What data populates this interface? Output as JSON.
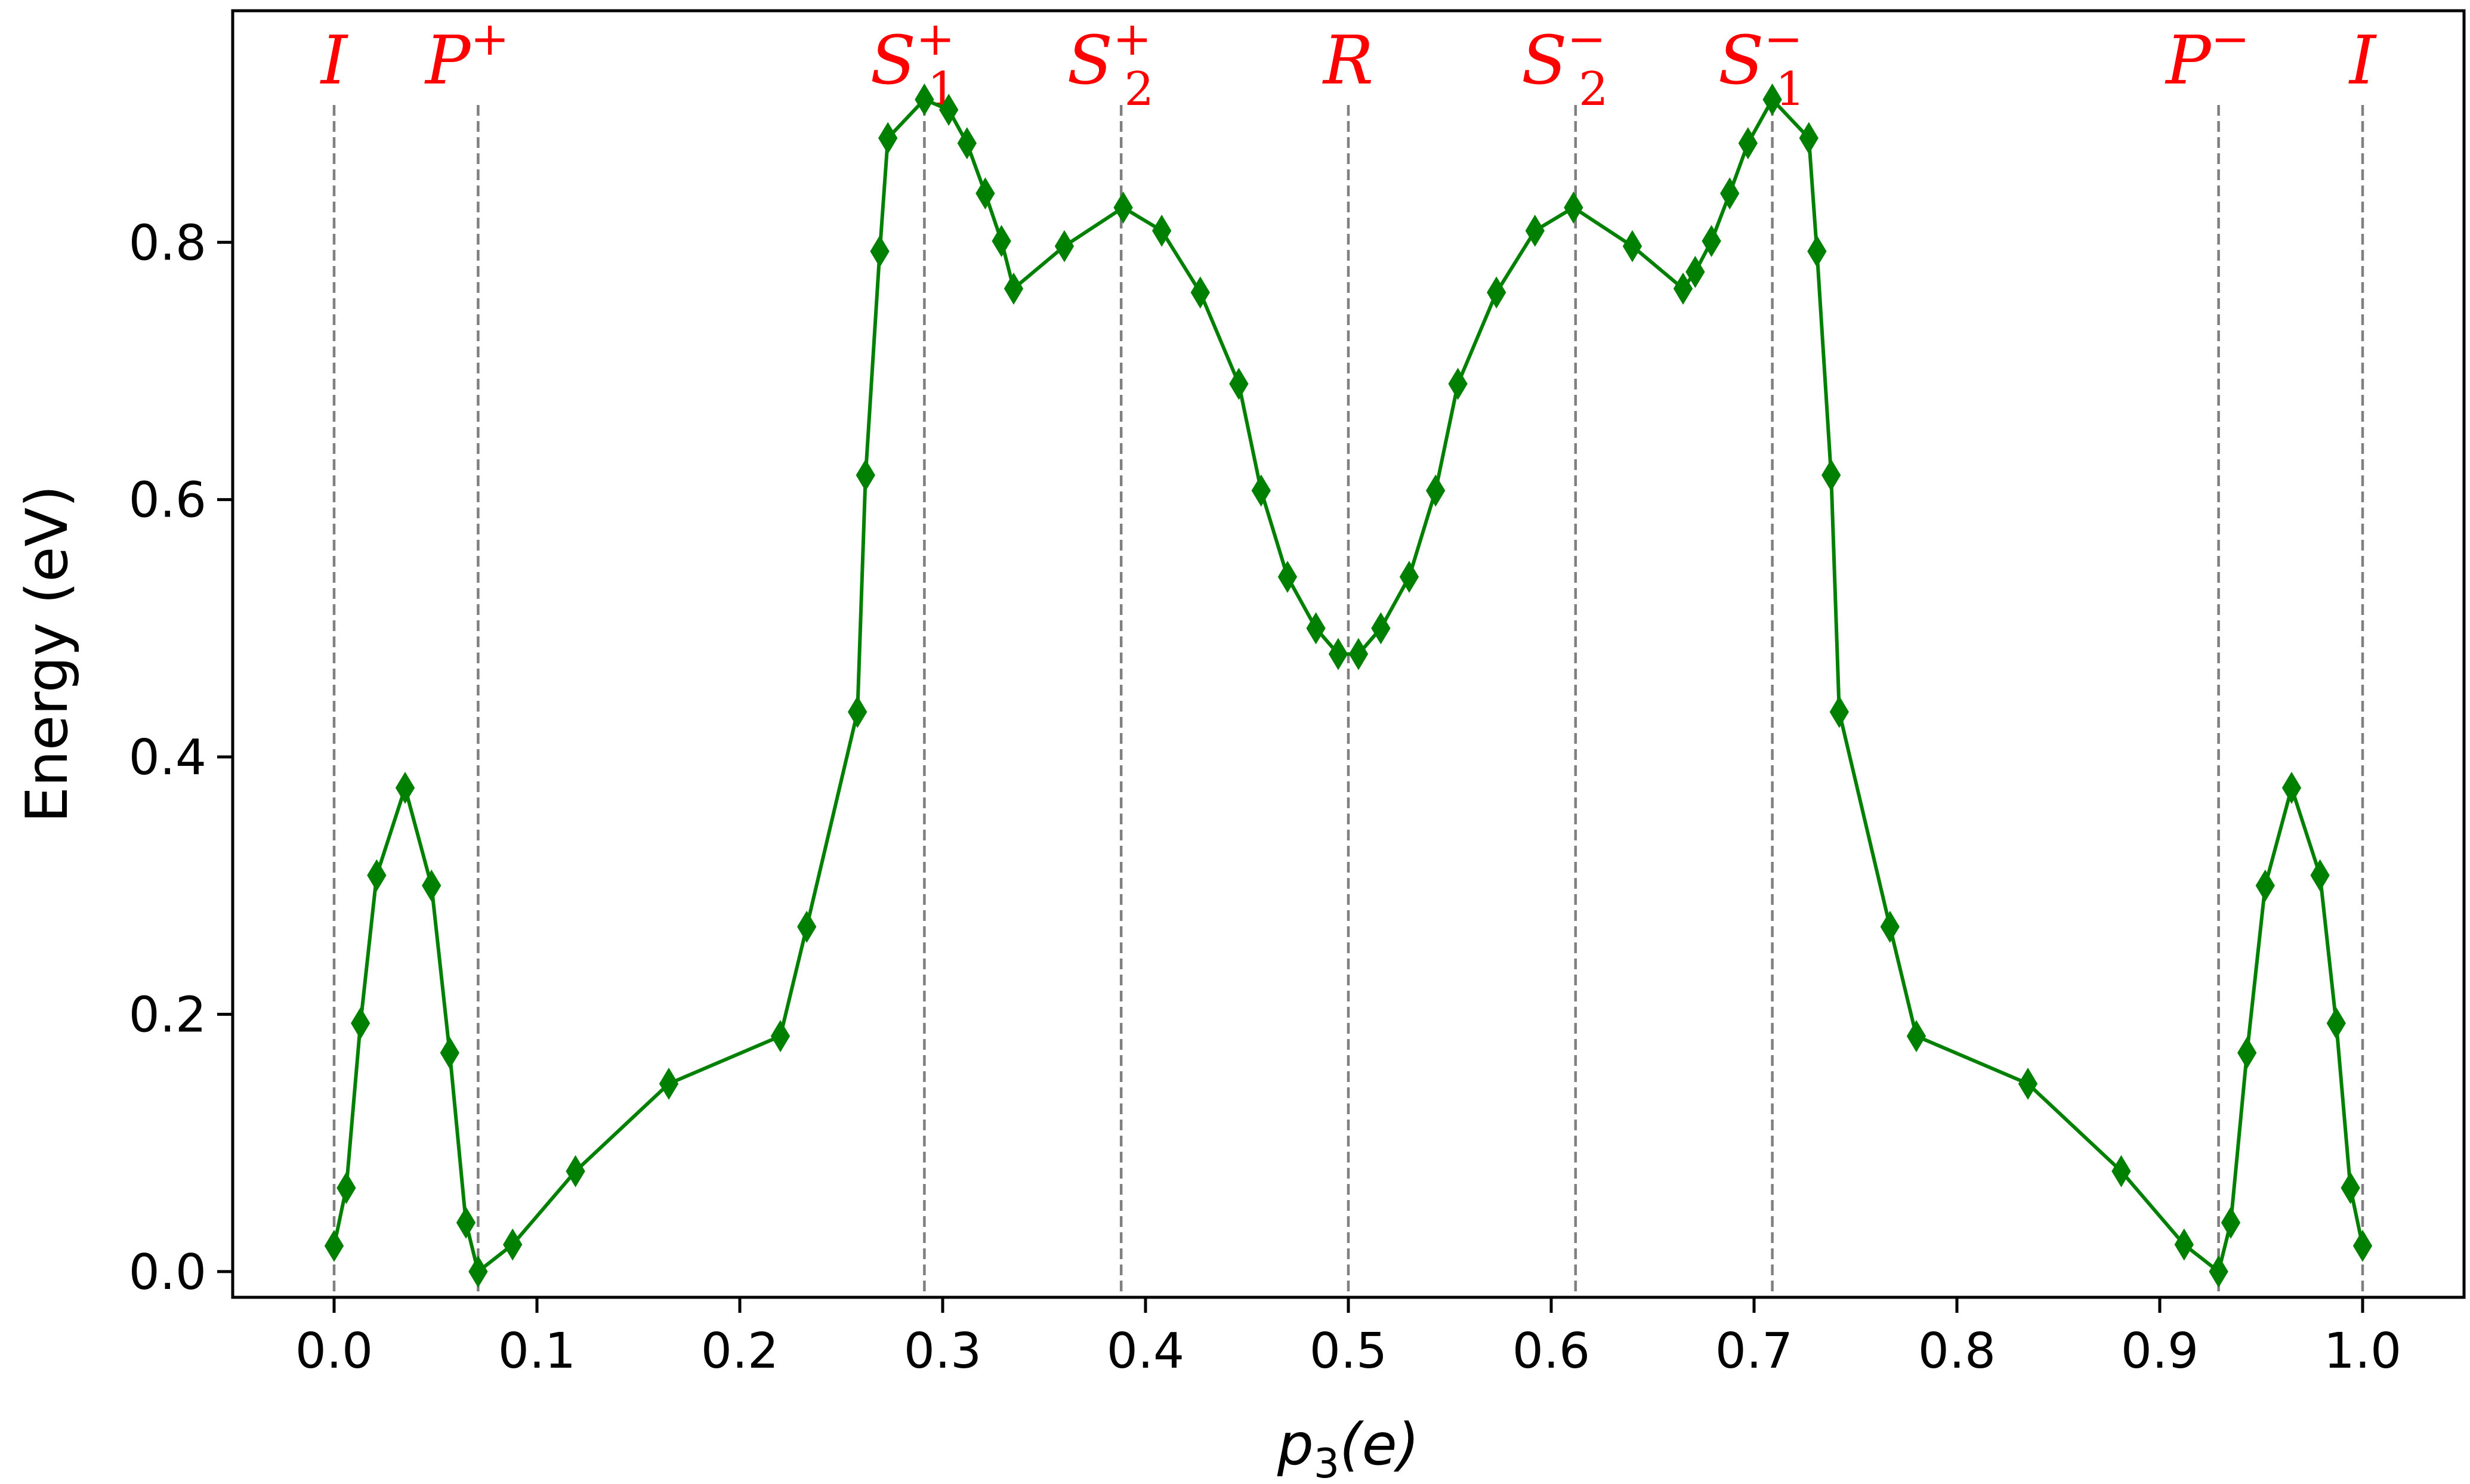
{
  "chart_data": {
    "type": "line",
    "xlabel_base": "p",
    "xlabel_sub": "3",
    "xlabel_rest": "(e)",
    "ylabel": "Energy (eV)",
    "xlim": [
      -0.05,
      1.05
    ],
    "ylim": [
      -0.02,
      0.98
    ],
    "grid": false,
    "x_ticks": [
      "0.0",
      "0.1",
      "0.2",
      "0.3",
      "0.4",
      "0.5",
      "0.6",
      "0.7",
      "0.8",
      "0.9",
      "1.0"
    ],
    "y_ticks": [
      "0.0",
      "0.2",
      "0.4",
      "0.6",
      "0.8"
    ],
    "series": [
      {
        "color": "#008000",
        "marker": "diamond",
        "x": [
          0.0,
          0.006,
          0.013,
          0.021,
          0.035,
          0.048,
          0.057,
          0.065,
          0.071,
          0.088,
          0.119,
          0.165,
          0.22,
          0.233,
          0.258,
          0.262,
          0.269,
          0.273,
          0.291,
          0.303,
          0.312,
          0.321,
          0.329,
          0.335,
          0.36,
          0.389,
          0.408,
          0.427,
          0.446,
          0.457,
          0.47,
          0.484,
          0.495,
          0.505,
          0.516,
          0.53,
          0.543,
          0.554,
          0.573,
          0.592,
          0.611,
          0.64,
          0.665,
          0.671,
          0.679,
          0.688,
          0.697,
          0.709,
          0.727,
          0.731,
          0.738,
          0.742,
          0.767,
          0.78,
          0.835,
          0.881,
          0.912,
          0.929,
          0.935,
          0.943,
          0.952,
          0.965,
          0.979,
          0.987,
          0.994,
          1.0
        ],
        "y": [
          0.02,
          0.065,
          0.193,
          0.308,
          0.376,
          0.3,
          0.17,
          0.038,
          0.0,
          0.021,
          0.078,
          0.146,
          0.183,
          0.268,
          0.435,
          0.619,
          0.793,
          0.881,
          0.911,
          0.903,
          0.877,
          0.838,
          0.801,
          0.764,
          0.797,
          0.827,
          0.809,
          0.761,
          0.69,
          0.607,
          0.54,
          0.5,
          0.48,
          0.48,
          0.5,
          0.54,
          0.607,
          0.69,
          0.761,
          0.809,
          0.827,
          0.797,
          0.764,
          0.777,
          0.801,
          0.838,
          0.877,
          0.911,
          0.881,
          0.793,
          0.619,
          0.435,
          0.268,
          0.183,
          0.146,
          0.078,
          0.021,
          0.0,
          0.038,
          0.17,
          0.3,
          0.376,
          0.308,
          0.193,
          0.065,
          0.02
        ]
      }
    ],
    "reference_lines": [
      {
        "x": 0.0,
        "label_base": "I",
        "label_sup": "",
        "label_sub": ""
      },
      {
        "x": 0.071,
        "label_base": "P",
        "label_sup": "+",
        "label_sub": ""
      },
      {
        "x": 0.291,
        "label_base": "S",
        "label_sup": "+",
        "label_sub": "1"
      },
      {
        "x": 0.388,
        "label_base": "S",
        "label_sup": "+",
        "label_sub": "2"
      },
      {
        "x": 0.5,
        "label_base": "R",
        "label_sup": "",
        "label_sub": ""
      },
      {
        "x": 0.612,
        "label_base": "S",
        "label_sup": "−",
        "label_sub": "2"
      },
      {
        "x": 0.709,
        "label_base": "S",
        "label_sup": "−",
        "label_sub": "1"
      },
      {
        "x": 0.929,
        "label_base": "P",
        "label_sup": "−",
        "label_sub": ""
      },
      {
        "x": 1.0,
        "label_base": "I",
        "label_sup": "",
        "label_sub": ""
      }
    ],
    "reference_line_color": "#808080",
    "label_color": "#ff0000"
  }
}
